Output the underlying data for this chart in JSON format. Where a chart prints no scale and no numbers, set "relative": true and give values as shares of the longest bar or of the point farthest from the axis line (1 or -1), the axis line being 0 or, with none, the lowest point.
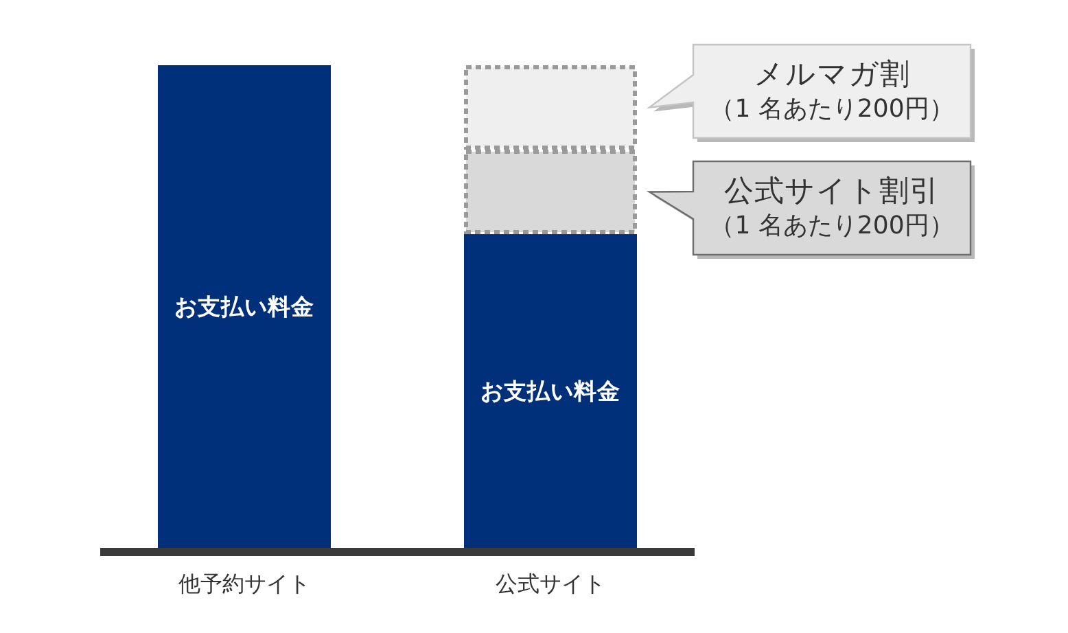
{
  "chart_data": {
    "type": "bar",
    "stacked": true,
    "relative": true,
    "categories": [
      "他予約サイト",
      "公式サイト"
    ],
    "series": [
      {
        "name": "お支払い料金",
        "color": "#00307a",
        "values": [
          1,
          0.65
        ]
      },
      {
        "name": "公式サイト割引",
        "color": "#d9d9d9",
        "line_style": "dashed",
        "values": [
          null,
          0.175
        ]
      },
      {
        "name": "メルマガ割",
        "color": "#efefef",
        "line_style": "dashed",
        "values": [
          null,
          0.175
        ]
      }
    ],
    "annotations": [
      "（1 名あたり200円）",
      "（1 名あたり200円）"
    ]
  }
}
